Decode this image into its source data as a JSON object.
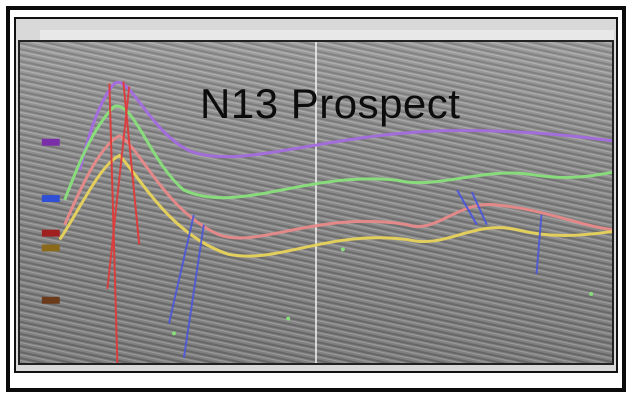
{
  "image": {
    "title": "N13 Prospect",
    "colors": {
      "frame": "#0b0b0b",
      "seismic_background": "#8e8e8e",
      "horizon_purple": "#a46be0",
      "horizon_green": "#88e07a",
      "horizon_pink": "#e98989",
      "horizon_yellow": "#e8d35a",
      "fault_red": "#e23a3a",
      "fault_blue": "#4a55e0"
    }
  }
}
